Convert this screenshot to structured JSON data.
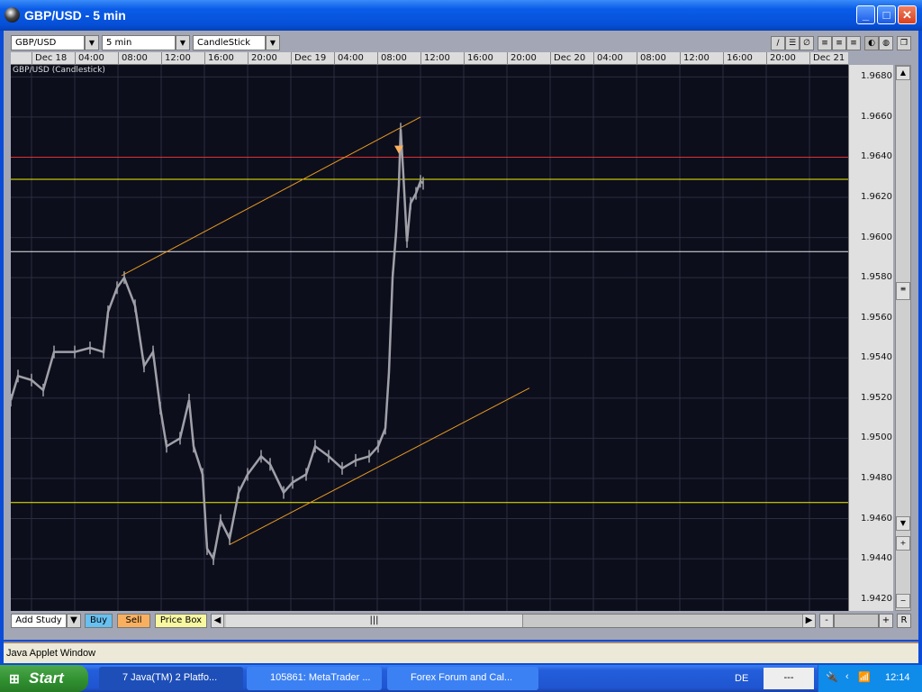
{
  "window": {
    "title": "GBP/USD - 5 min"
  },
  "toolbar": {
    "symbol": "GBP/USD",
    "interval": "5 min",
    "chart_type": "CandleStick",
    "tools": [
      "trendline-icon",
      "channel-icon",
      "fib-icon",
      "hgrid-icon",
      "hgrid2-icon",
      "hgrid3-icon",
      "theme-dark-icon",
      "theme-pattern-icon"
    ]
  },
  "chart_data": {
    "type": "line",
    "title": "GBP/USD (Candlestick)",
    "x_ticks": [
      "Dec 18",
      "04:00",
      "08:00",
      "12:00",
      "16:00",
      "20:00",
      "Dec 19",
      "04:00",
      "08:00",
      "12:00",
      "16:00",
      "20:00",
      "Dec 20",
      "04:00",
      "08:00",
      "12:00",
      "16:00",
      "20:00",
      "Dec 21"
    ],
    "y_ticks": [
      "1.9680",
      "1.9660",
      "1.9640",
      "1.9620",
      "1.9600",
      "1.9580",
      "1.9560",
      "1.9540",
      "1.9520",
      "1.9500",
      "1.9480",
      "1.9460",
      "1.9440",
      "1.9420"
    ],
    "ylim": [
      1.9414,
      1.9686
    ],
    "grid": true,
    "series": [
      {
        "color": "#a0a0a8",
        "points": [
          [
            "Dec 17 22:05",
            1.9519
          ],
          [
            "Dec 17 22:45",
            1.9531
          ],
          [
            "Dec 18 00:00",
            1.9529
          ],
          [
            "Dec 18 01:05",
            1.9524
          ],
          [
            "Dec 18 02:05",
            1.9543
          ],
          [
            "Dec 18 04:00",
            1.9543
          ],
          [
            "Dec 18 05:25",
            1.9545
          ],
          [
            "Dec 18 06:40",
            1.9543
          ],
          [
            "Dec 18 07:05",
            1.9563
          ],
          [
            "Dec 18 07:55",
            1.9575
          ],
          [
            "Dec 18 08:35",
            1.958
          ],
          [
            "Dec 18 09:35",
            1.9566
          ],
          [
            "Dec 18 10:25",
            1.9536
          ],
          [
            "Dec 18 11:15",
            1.9543
          ],
          [
            "Dec 18 11:55",
            1.9515
          ],
          [
            "Dec 18 12:30",
            1.9496
          ],
          [
            "Dec 18 13:45",
            1.95
          ],
          [
            "Dec 18 14:35",
            1.9519
          ],
          [
            "Dec 18 15:00",
            1.9496
          ],
          [
            "Dec 18 15:50",
            1.9482
          ],
          [
            "Dec 18 16:15",
            1.9445
          ],
          [
            "Dec 18 16:50",
            1.944
          ],
          [
            "Dec 18 17:30",
            1.9459
          ],
          [
            "Dec 18 18:20",
            1.945
          ],
          [
            "Dec 18 19:10",
            1.9473
          ],
          [
            "Dec 18 20:00",
            1.9482
          ],
          [
            "Dec 18 21:15",
            1.9491
          ],
          [
            "Dec 18 22:05",
            1.9487
          ],
          [
            "Dec 18 23:20",
            1.9473
          ],
          [
            "Dec 19 00:10",
            1.9478
          ],
          [
            "Dec 19 01:25",
            1.9482
          ],
          [
            "Dec 19 02:15",
            1.9496
          ],
          [
            "Dec 19 03:30",
            1.9491
          ],
          [
            "Dec 19 04:45",
            1.9485
          ],
          [
            "Dec 19 06:00",
            1.9489
          ],
          [
            "Dec 19 07:15",
            1.9491
          ],
          [
            "Dec 19 08:05",
            1.9496
          ],
          [
            "Dec 19 08:45",
            1.9505
          ],
          [
            "Dec 19 09:05",
            1.9533
          ],
          [
            "Dec 19 09:25",
            1.958
          ],
          [
            "Dec 19 09:45",
            1.9603
          ],
          [
            "Dec 19 10:00",
            1.9626
          ],
          [
            "Dec 19 10:10",
            1.9654
          ],
          [
            "Dec 19 10:25",
            1.9631
          ],
          [
            "Dec 19 10:45",
            1.9598
          ],
          [
            "Dec 19 11:05",
            1.9617
          ],
          [
            "Dec 19 11:35",
            1.9622
          ],
          [
            "Dec 19 12:00",
            1.9628
          ],
          [
            "Dec 19 12:15",
            1.9627
          ]
        ]
      }
    ],
    "hlines": [
      {
        "price": 1.964,
        "color": "#e03030"
      },
      {
        "price": 1.9629,
        "color": "#f0f000"
      },
      {
        "price": 1.9593,
        "color": "#e8e8e8"
      },
      {
        "price": 1.9468,
        "color": "#f0f000"
      }
    ],
    "trendlines": [
      {
        "from": [
          "Dec 18 08:20",
          1.9581
        ],
        "to": [
          "Dec 19 12:00",
          1.966
        ],
        "color": "#e89a20"
      },
      {
        "from": [
          "Dec 18 18:20",
          1.9447
        ],
        "to": [
          "Dec 19 22:05",
          1.9525
        ],
        "color": "#e89a20"
      }
    ],
    "markers": [
      {
        "time": "Dec 19 10:00",
        "price": 1.9644,
        "shape": "triangle-down",
        "color": "#f8b060"
      }
    ]
  },
  "bottombar": {
    "add_study": "Add Study",
    "buy": "Buy",
    "sell": "Sell",
    "price_box": "Price Box",
    "zoom_out": "-",
    "zoom_in": "+",
    "reset": "R"
  },
  "status": "Java Applet Window",
  "taskbar": {
    "start": "Start",
    "tasks": [
      {
        "label": "7 Java(TM) 2 Platfo..."
      },
      {
        "label": "105861: MetaTrader ..."
      },
      {
        "label": "Forex Forum and Cal..."
      }
    ],
    "language": "DE",
    "tray_box": "---",
    "clock": "12:14"
  }
}
